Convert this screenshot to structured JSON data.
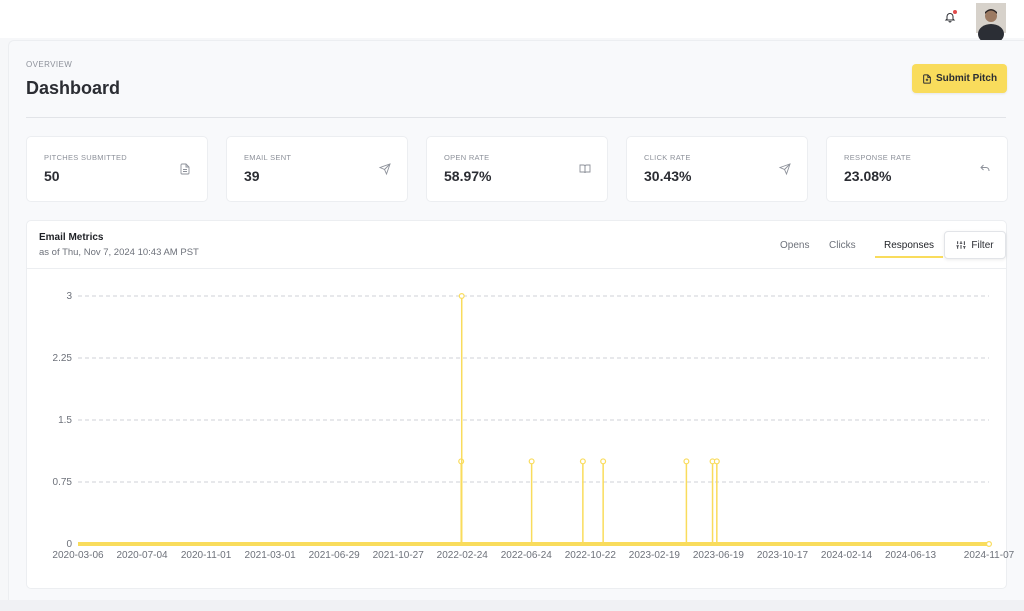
{
  "topbar": {
    "notifications_icon": "bell-icon",
    "avatar_icon": "user-avatar"
  },
  "header": {
    "overview": "OVERVIEW",
    "title": "Dashboard",
    "submit_label": "Submit Pitch",
    "submit_icon": "document-icon"
  },
  "stats": [
    {
      "label": "PITCHES SUBMITTED",
      "value": "50",
      "icon": "document-icon"
    },
    {
      "label": "EMAIL SENT",
      "value": "39",
      "icon": "send-icon"
    },
    {
      "label": "OPEN RATE",
      "value": "58.97%",
      "icon": "book-open-icon"
    },
    {
      "label": "CLICK RATE",
      "value": "30.43%",
      "icon": "send-icon"
    },
    {
      "label": "RESPONSE RATE",
      "value": "23.08%",
      "icon": "reply-icon"
    }
  ],
  "metrics": {
    "title": "Email Metrics",
    "subtitle": "as of Thu, Nov 7, 2024 10:43 AM PST",
    "tabs": [
      "Opens",
      "Clicks",
      "Responses"
    ],
    "active_tab": "Responses",
    "filter_label": "Filter",
    "accent_color": "#f9dc5c"
  },
  "chart_data": {
    "type": "line",
    "title": "",
    "xlabel": "",
    "ylabel": "",
    "x_range": [
      "2020-03-06",
      "2024-11-07"
    ],
    "ylim": [
      0,
      3
    ],
    "yticks": [
      "0",
      "0.75",
      "1.5",
      "2.25",
      "3"
    ],
    "xticks": [
      "2020-03-06",
      "2020-07-04",
      "2020-11-01",
      "2021-03-01",
      "2021-06-29",
      "2021-10-27",
      "2022-02-24",
      "2022-06-24",
      "2022-10-22",
      "2023-02-19",
      "2023-06-19",
      "2023-10-17",
      "2024-02-14",
      "2024-06-13",
      "2024-11-07"
    ],
    "grid": true,
    "color": "#f9dc5c",
    "series": [
      {
        "values": [
          {
            "x": "2022-02-22",
            "y": 1
          },
          {
            "x": "2022-02-23",
            "y": 3
          },
          {
            "x": "2022-07-04",
            "y": 1
          },
          {
            "x": "2022-10-08",
            "y": 1
          },
          {
            "x": "2022-11-15",
            "y": 1
          },
          {
            "x": "2023-04-20",
            "y": 1
          },
          {
            "x": "2023-06-08",
            "y": 1
          },
          {
            "x": "2023-06-16",
            "y": 1
          }
        ]
      }
    ]
  }
}
